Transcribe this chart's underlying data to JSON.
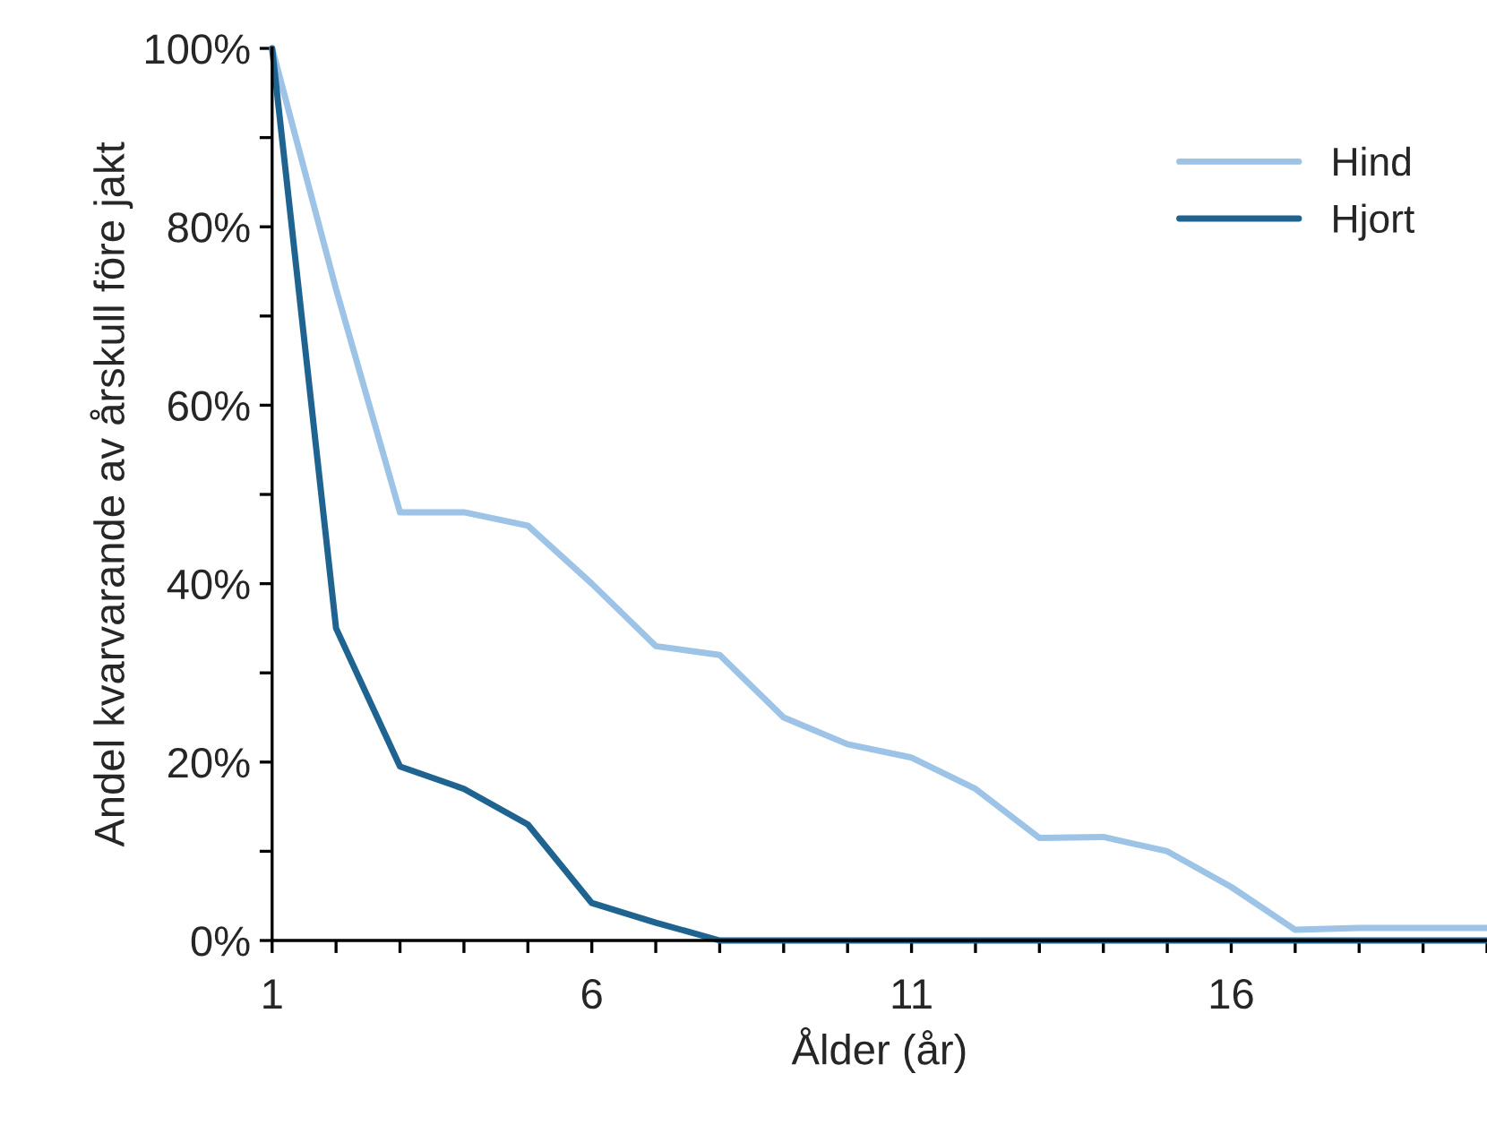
{
  "chart_data": {
    "type": "line",
    "xlabel": "Ålder (år)",
    "ylabel": "Andel kvarvarande av årskull före jakt",
    "x": [
      1,
      2,
      3,
      4,
      5,
      6,
      7,
      8,
      9,
      10,
      11,
      12,
      13,
      14,
      15,
      16,
      17,
      18,
      19,
      20
    ],
    "series": [
      {
        "name": "Hind",
        "color": "#9dc3e6",
        "values": [
          100,
          73,
          48,
          48,
          46.5,
          40,
          33,
          32,
          25,
          22,
          20.5,
          17,
          11.5,
          11.6,
          10,
          6,
          1.2,
          1.4,
          1.4,
          1.4
        ]
      },
      {
        "name": "Hjort",
        "color": "#1f6391",
        "values": [
          100,
          35,
          19.5,
          17,
          13,
          4.2,
          2,
          0,
          0,
          0,
          0,
          0,
          0,
          0,
          0,
          0,
          0,
          0,
          0,
          0
        ]
      }
    ],
    "xlim": [
      1,
      20
    ],
    "xticks": [
      1,
      {
        "value": 2,
        "label": null
      },
      {
        "value": 3,
        "label": null
      },
      {
        "value": 4,
        "label": null
      },
      {
        "value": 5,
        "label": null
      },
      6,
      {
        "value": 7,
        "label": null
      },
      {
        "value": 8,
        "label": null
      },
      {
        "value": 9,
        "label": null
      },
      {
        "value": 10,
        "label": null
      },
      11,
      {
        "value": 12,
        "label": null
      },
      {
        "value": 13,
        "label": null
      },
      {
        "value": 14,
        "label": null
      },
      {
        "value": 15,
        "label": null
      },
      16,
      {
        "value": 17,
        "label": null
      },
      {
        "value": 18,
        "label": null
      },
      {
        "value": 19,
        "label": null
      },
      {
        "value": 20,
        "label": null
      }
    ],
    "ylim": [
      0,
      100
    ],
    "yticks": [
      {
        "value": 0,
        "label": "0%"
      },
      {
        "value": 10,
        "label": null
      },
      {
        "value": 20,
        "label": "20%"
      },
      {
        "value": 30,
        "label": null
      },
      {
        "value": 40,
        "label": "40%"
      },
      {
        "value": 50,
        "label": null
      },
      {
        "value": 60,
        "label": "60%"
      },
      {
        "value": 70,
        "label": null
      },
      {
        "value": 80,
        "label": "80%"
      },
      {
        "value": 90,
        "label": null
      },
      {
        "value": 100,
        "label": "100%"
      }
    ],
    "grid": false,
    "legend": "top right",
    "marker": "none",
    "line_style": "solid"
  }
}
